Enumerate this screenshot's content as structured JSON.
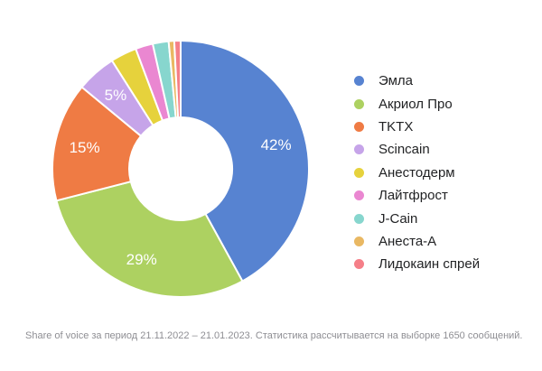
{
  "chart_data": {
    "type": "pie",
    "subtype": "donut",
    "start_angle_deg": 0,
    "direction": "clockwise",
    "legend_position": "right",
    "label_color": "#FFFFFF",
    "series": [
      {
        "name": "Эмла",
        "value": 42,
        "label": "42%",
        "color": "#5783D1"
      },
      {
        "name": "Акриол Про",
        "value": 29,
        "label": "29%",
        "color": "#ADD161"
      },
      {
        "name": "TKTX",
        "value": 15,
        "label": "15%",
        "color": "#EF7B44"
      },
      {
        "name": "Scincain",
        "value": 5,
        "label": "5%",
        "color": "#C6A4E9"
      },
      {
        "name": "Анестодерм",
        "value": 3.3,
        "label": "",
        "color": "#E6D23C"
      },
      {
        "name": "Лайтфрост",
        "value": 2.2,
        "label": "",
        "color": "#EA87D1"
      },
      {
        "name": "J-Cain",
        "value": 2,
        "label": "",
        "color": "#87D6CE"
      },
      {
        "name": "Анеста-А",
        "value": 0.7,
        "label": "",
        "color": "#E9B863"
      },
      {
        "name": "Лидокаин спрей",
        "value": 0.8,
        "label": "",
        "color": "#F57F88"
      }
    ]
  },
  "footer": {
    "text": "Share of voice за период 21.11.2022 – 21.01.2023. Статистика рассчитывается на выборке 1650 сообщений."
  }
}
